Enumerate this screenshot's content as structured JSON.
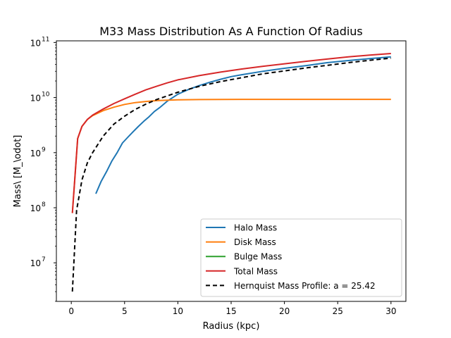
{
  "chart_data": {
    "type": "line",
    "title": "M33 Mass Distribution As A Function Of Radius",
    "xlabel": "Radius (kpc)",
    "ylabel": "Mass\\ [M_\\odot]",
    "xlim": [
      -1.4,
      31.4
    ],
    "ylim_log10": [
      6.3,
      11.03
    ],
    "yscale": "log",
    "grid": false,
    "legend_position": "lower-right",
    "x_ticks": [
      0,
      5,
      10,
      15,
      20,
      25,
      30
    ],
    "y_ticks": [
      {
        "exp": 7,
        "base": "10",
        "power": "7"
      },
      {
        "exp": 8,
        "base": "10",
        "power": "8"
      },
      {
        "exp": 9,
        "base": "10",
        "power": "9"
      },
      {
        "exp": 10,
        "base": "10",
        "power": "10"
      },
      {
        "exp": 11,
        "base": "10",
        "power": "11"
      }
    ],
    "series": [
      {
        "name": "Halo Mass",
        "color": "#1f77b4",
        "dash": "",
        "x": [
          2.3,
          2.8,
          3.3,
          3.8,
          4.3,
          4.8,
          5.3,
          5.8,
          6.3,
          6.8,
          7.3,
          7.8,
          8.3,
          9,
          10,
          11,
          12,
          13,
          14,
          15,
          16,
          18,
          20,
          22,
          24,
          26,
          28,
          30
        ],
        "y": [
          180000000.0,
          300000000.0,
          450000000.0,
          700000000.0,
          1000000000.0,
          1500000000.0,
          1900000000.0,
          2400000000.0,
          3000000000.0,
          3700000000.0,
          4500000000.0,
          5600000000.0,
          6600000000.0,
          8600000000.0,
          11500000000.0,
          14000000000.0,
          16500000000.0,
          19000000000.0,
          21500000000.0,
          24000000000.0,
          26000000000.0,
          30000000000.0,
          34000000000.0,
          38000000000.0,
          43000000000.0,
          47000000000.0,
          51000000000.0,
          55000000000.0
        ]
      },
      {
        "name": "Disk Mass",
        "color": "#ff7f0e",
        "dash": "",
        "x": [
          0.1,
          0.6,
          1,
          1.5,
          2,
          3,
          4,
          5,
          6,
          7,
          8,
          10,
          12,
          14,
          16,
          20,
          25,
          30
        ],
        "y": [
          80000000.0,
          1800000000.0,
          3000000000.0,
          4000000000.0,
          4700000000.0,
          5800000000.0,
          6700000000.0,
          7500000000.0,
          8100000000.0,
          8500000000.0,
          8800000000.0,
          9100000000.0,
          9200000000.0,
          9250000000.0,
          9270000000.0,
          9280000000.0,
          9280000000.0,
          9280000000.0
        ]
      },
      {
        "name": "Bulge Mass",
        "color": "#2ca02c",
        "dash": "",
        "x": [],
        "y": []
      },
      {
        "name": "Total Mass",
        "color": "#d62728",
        "dash": "",
        "x": [
          0.1,
          0.6,
          1,
          1.5,
          2,
          3,
          4,
          5,
          6,
          7,
          8,
          9,
          10,
          12,
          14,
          16,
          18,
          20,
          22,
          24,
          26,
          28,
          30
        ],
        "y": [
          80000000.0,
          1800000000.0,
          3000000000.0,
          4000000000.0,
          4800000000.0,
          6200000000.0,
          7800000000.0,
          9500000000.0,
          11500000000.0,
          13800000000.0,
          16000000000.0,
          18500000000.0,
          21000000000.0,
          25000000000.0,
          29000000000.0,
          33000000000.0,
          37000000000.0,
          41000000000.0,
          45500000000.0,
          50000000000.0,
          55000000000.0,
          59000000000.0,
          63000000000.0
        ]
      },
      {
        "name": "Hernquist Mass Profile: a = 25.42",
        "color": "#000000",
        "dash": "6,4",
        "x": [
          0.1,
          0.5,
          1,
          1.5,
          2,
          3,
          4,
          5,
          6,
          7,
          8,
          10,
          12,
          14,
          16,
          18,
          20,
          22,
          24,
          26,
          28,
          30
        ],
        "y": [
          3000000.0,
          90000000.0,
          320000000.0,
          650000000.0,
          1000000000.0,
          2000000000.0,
          3300000000.0,
          4600000000.0,
          6100000000.0,
          7600000000.0,
          9200000000.0,
          12500000000.0,
          16000000000.0,
          19500000000.0,
          23000000000.0,
          27000000000.0,
          30500000000.0,
          34500000000.0,
          38500000000.0,
          43000000000.0,
          47500000000.0,
          52000000000.0
        ]
      }
    ]
  }
}
